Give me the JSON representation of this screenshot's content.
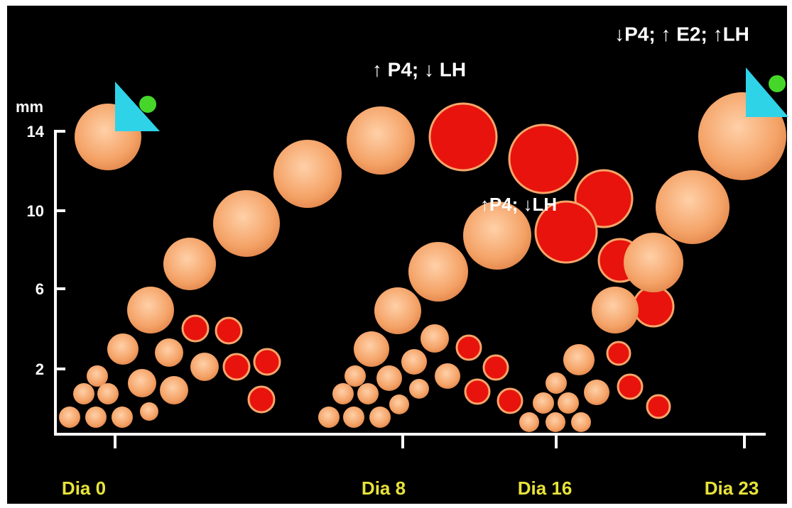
{
  "axis": {
    "unit": "mm",
    "yticks": [
      "14",
      "10",
      "6",
      "2"
    ],
    "xlabels": [
      "Dia 0",
      "Dia 8",
      "Dia 16",
      "Dia 23"
    ]
  },
  "annotations": [
    "↑ P4; ↓ LH",
    "↓P4; ↑ E2; ↑LH",
    "↑P4; ↓LH"
  ]
}
